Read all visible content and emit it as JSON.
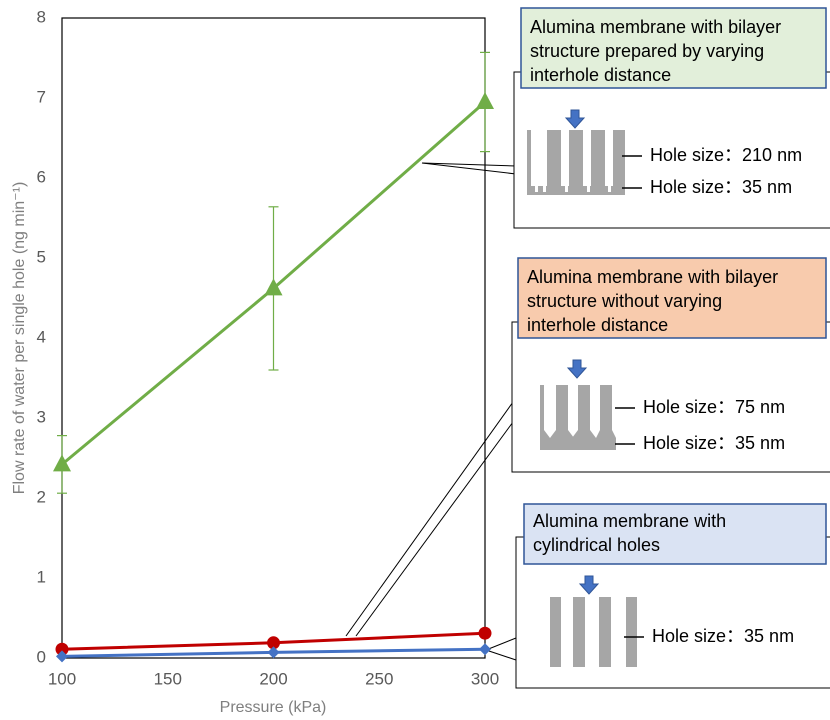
{
  "chart_data": {
    "type": "line",
    "x_label": "Pressure (kPa)",
    "y_label": "Flow rate of water per single hole (ng min⁻¹)",
    "xlim": [
      100,
      300
    ],
    "xticks": [
      100,
      150,
      200,
      250,
      300
    ],
    "ylim": [
      0,
      8
    ],
    "yticks": [
      0,
      1,
      2,
      3,
      4,
      5,
      6,
      7,
      8
    ],
    "x": [
      100,
      200,
      300
    ],
    "series": [
      {
        "color": "#70ad47",
        "marker": "triangle",
        "values": [
          2.42,
          4.62,
          6.95
        ],
        "errors": [
          0.36,
          1.02,
          0.62
        ]
      },
      {
        "color": "#c00000",
        "marker": "circle",
        "values": [
          0.11,
          0.19,
          0.31
        ]
      },
      {
        "color": "#4472c4",
        "marker": "diamond",
        "values": [
          0.02,
          0.07,
          0.11
        ]
      }
    ],
    "annotations": [
      {
        "title": [
          "Alumina membrane with bilayer",
          "structure prepared by varying",
          "interhole distance"
        ],
        "labels": [
          "Hole size：210 nm",
          "Hole size：35 nm"
        ]
      },
      {
        "title": [
          "Alumina membrane with bilayer",
          "structure without varying",
          "interhole distance"
        ],
        "labels": [
          "Hole size：75 nm",
          "Hole size：35 nm"
        ]
      },
      {
        "title": [
          "Alumina membrane with",
          "cylindrical holes"
        ],
        "labels": [
          "Hole size：35 nm"
        ]
      }
    ]
  }
}
